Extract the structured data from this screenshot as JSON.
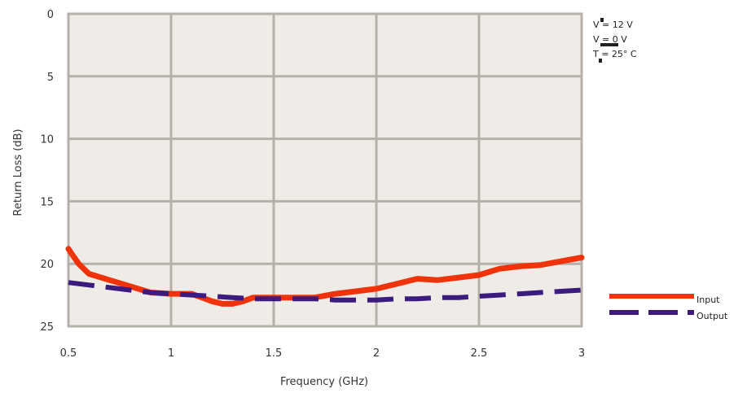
{
  "chart_data": {
    "type": "line",
    "title": "",
    "xlabel": "Frequency (GHz)",
    "ylabel": "Return Loss (dB)",
    "xlim": [
      0.5,
      3
    ],
    "ylim": [
      0,
      25
    ],
    "y_inverted": true,
    "x_ticks": [
      "0.5",
      "1",
      "1.5",
      "2",
      "2.5",
      "3"
    ],
    "y_ticks": [
      "0",
      "5",
      "10",
      "15",
      "20",
      "25"
    ],
    "grid": true,
    "plot_background": "#efebe6",
    "grid_color": "#b5b1aa",
    "legend_position": "right",
    "conditions": [
      "V  = 12 V",
      "V    = 0 V",
      "T  = 25° C"
    ],
    "series": [
      {
        "name": "Input",
        "color": "#f0330a",
        "style": "solid",
        "x": [
          0.5,
          0.52,
          0.55,
          0.6,
          0.7,
          0.8,
          0.9,
          1.0,
          1.1,
          1.2,
          1.25,
          1.3,
          1.35,
          1.4,
          1.5,
          1.6,
          1.7,
          1.8,
          1.9,
          2.0,
          2.1,
          2.2,
          2.3,
          2.4,
          2.5,
          2.6,
          2.7,
          2.8,
          2.9,
          3.0
        ],
        "y": [
          18.8,
          19.3,
          20.0,
          20.8,
          21.3,
          21.8,
          22.3,
          22.4,
          22.4,
          23.0,
          23.2,
          23.2,
          23.0,
          22.7,
          22.7,
          22.7,
          22.7,
          22.4,
          22.2,
          22.0,
          21.6,
          21.2,
          21.3,
          21.1,
          20.9,
          20.4,
          20.2,
          20.1,
          19.8,
          19.5
        ]
      },
      {
        "name": "Output",
        "color": "#3c1a7e",
        "style": "dashed",
        "x": [
          0.5,
          0.6,
          0.7,
          0.8,
          0.9,
          1.0,
          1.1,
          1.2,
          1.3,
          1.4,
          1.5,
          1.6,
          1.7,
          1.8,
          1.9,
          2.0,
          2.1,
          2.2,
          2.3,
          2.4,
          2.5,
          2.6,
          2.7,
          2.8,
          2.9,
          3.0
        ],
        "y": [
          21.5,
          21.7,
          21.9,
          22.1,
          22.3,
          22.4,
          22.5,
          22.6,
          22.7,
          22.8,
          22.8,
          22.8,
          22.8,
          22.9,
          22.9,
          22.9,
          22.8,
          22.8,
          22.7,
          22.7,
          22.6,
          22.5,
          22.4,
          22.3,
          22.2,
          22.1
        ]
      }
    ]
  }
}
